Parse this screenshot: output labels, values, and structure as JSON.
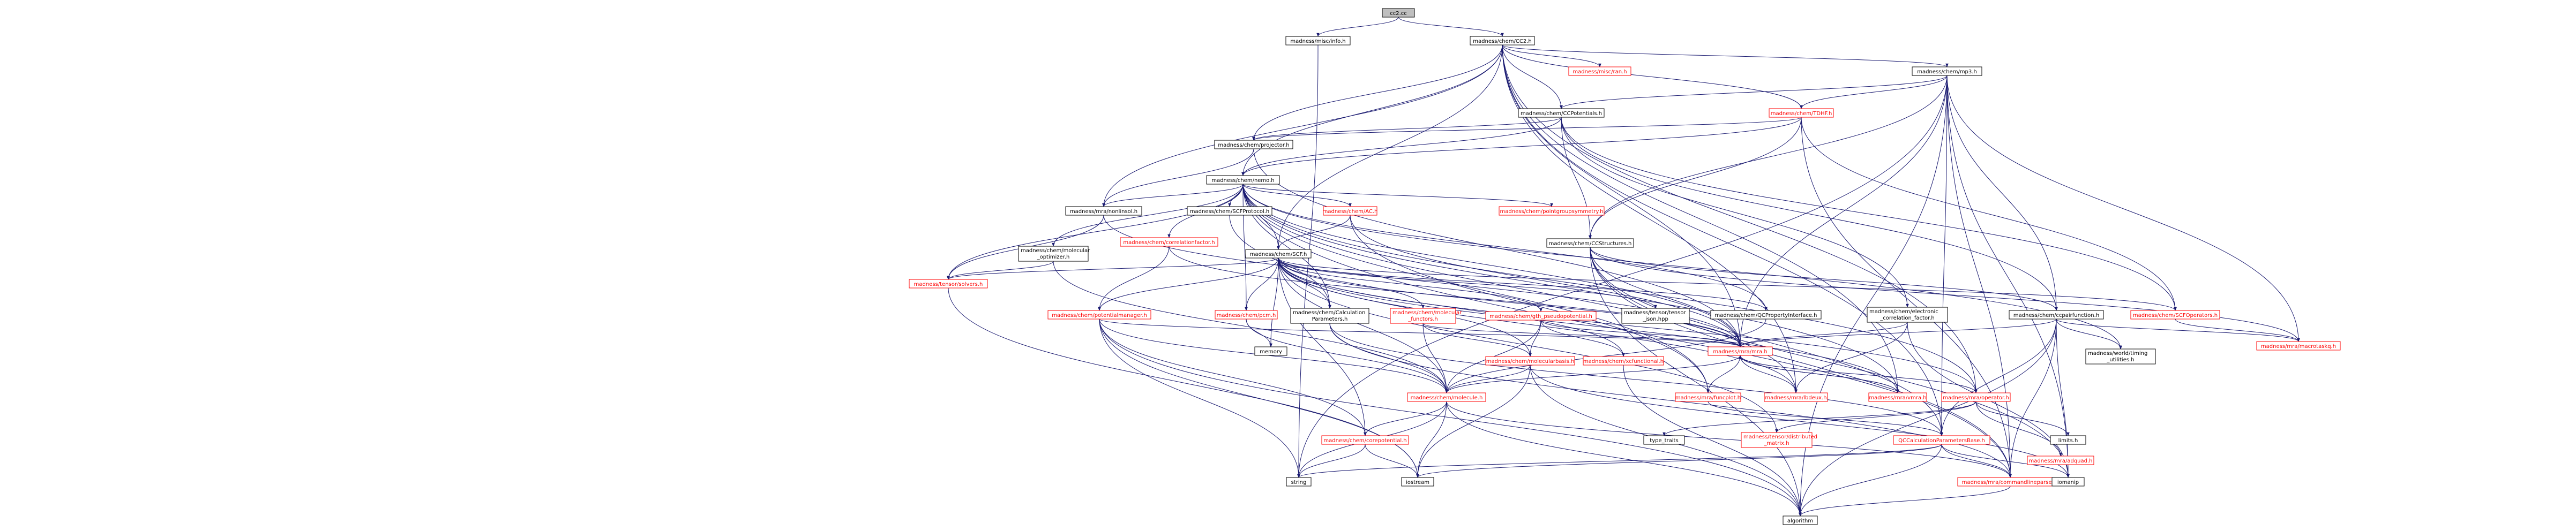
{
  "colors": {
    "link_text": "#ff0000",
    "plain_text": "#000000",
    "root_fill": "#bfbfbf",
    "node_border_link": "#ff0000",
    "node_border_plain": "#000000",
    "edge": "#191970"
  },
  "nodes": [
    {
      "id": "cc2_cc",
      "lines": [
        "cc2.cc"
      ],
      "kind": "root"
    },
    {
      "id": "info_h",
      "lines": [
        "madness/misc/info.h"
      ],
      "kind": "plain"
    },
    {
      "id": "CC2_h",
      "lines": [
        "madness/chem/CC2.h"
      ],
      "kind": "plain"
    },
    {
      "id": "ran_h",
      "lines": [
        "madness/misc/ran.h"
      ],
      "kind": "link"
    },
    {
      "id": "mp3_h",
      "lines": [
        "madness/chem/mp3.h"
      ],
      "kind": "plain"
    },
    {
      "id": "CCPotentials_h",
      "lines": [
        "madness/chem/CCPotentials.h"
      ],
      "kind": "plain"
    },
    {
      "id": "TDHF_h",
      "lines": [
        "madness/chem/TDHF.h"
      ],
      "kind": "link"
    },
    {
      "id": "projector_h",
      "lines": [
        "madness/chem/projector.h"
      ],
      "kind": "plain"
    },
    {
      "id": "nemo_h",
      "lines": [
        "madness/chem/nemo.h"
      ],
      "kind": "plain"
    },
    {
      "id": "nonlinsol_h",
      "lines": [
        "madness/mra/nonlinsol.h"
      ],
      "kind": "plain"
    },
    {
      "id": "SCFProtocol_h",
      "lines": [
        "madness/chem/SCFProtocol.h"
      ],
      "kind": "plain"
    },
    {
      "id": "AC_h",
      "lines": [
        "madness/chem/AC.h"
      ],
      "kind": "link"
    },
    {
      "id": "pointgroupsymmetry_h",
      "lines": [
        "madness/chem/pointgroupsymmetry.h"
      ],
      "kind": "link"
    },
    {
      "id": "molecular_optimizer_h",
      "lines": [
        "madness/chem/molecular",
        "_optimizer.h"
      ],
      "kind": "plain"
    },
    {
      "id": "correlationfactor_h",
      "lines": [
        "madness/chem/correlationfactor.h"
      ],
      "kind": "link"
    },
    {
      "id": "SCF_h",
      "lines": [
        "madness/chem/SCF.h"
      ],
      "kind": "plain"
    },
    {
      "id": "CCStructures_h",
      "lines": [
        "madness/chem/CCStructures.h"
      ],
      "kind": "plain"
    },
    {
      "id": "tensorsolvers_h",
      "lines": [
        "madness/tensor/solvers.h"
      ],
      "kind": "link"
    },
    {
      "id": "potentialmanager_h",
      "lines": [
        "madness/chem/potentialmanager.h"
      ],
      "kind": "link"
    },
    {
      "id": "pcm_h",
      "lines": [
        "madness/chem/pcm.h"
      ],
      "kind": "link"
    },
    {
      "id": "CalculationParameters_h",
      "lines": [
        "madness/chem/Calculation",
        "Parameters.h"
      ],
      "kind": "plain"
    },
    {
      "id": "molecular_functors_h",
      "lines": [
        "madness/chem/molecular",
        "_functors.h"
      ],
      "kind": "link"
    },
    {
      "id": "gth_pseudopotential_h",
      "lines": [
        "madness/chem/gth_pseudopotential.h"
      ],
      "kind": "link"
    },
    {
      "id": "tensorjson_hpp",
      "lines": [
        "madness/tensor/tensor",
        "_json.hpp"
      ],
      "kind": "plain"
    },
    {
      "id": "QCPropertyInterface_h",
      "lines": [
        "madness/chem/QCPropertyInterface.h"
      ],
      "kind": "plain"
    },
    {
      "id": "electronic_correlation_factor_h",
      "lines": [
        "madness/chem/electronic",
        "_correlation_factor.h"
      ],
      "kind": "plain"
    },
    {
      "id": "ccpairfunction_h",
      "lines": [
        "madness/chem/ccpairfunction.h"
      ],
      "kind": "plain"
    },
    {
      "id": "SCFOperators_h",
      "lines": [
        "madness/chem/SCFOperators.h"
      ],
      "kind": "link"
    },
    {
      "id": "macrotaskq_h",
      "lines": [
        "madness/mra/macrotaskq.h"
      ],
      "kind": "link"
    },
    {
      "id": "memory",
      "lines": [
        "memory"
      ],
      "kind": "plain"
    },
    {
      "id": "molecularbasis_h",
      "lines": [
        "madness/chem/molecularbasis.h"
      ],
      "kind": "link"
    },
    {
      "id": "xcfunctional_h",
      "lines": [
        "madness/chem/xcfunctional.h"
      ],
      "kind": "link"
    },
    {
      "id": "mra_h",
      "lines": [
        "madness/mra/mra.h"
      ],
      "kind": "link"
    },
    {
      "id": "world_utilities_h",
      "lines": [
        "madness/world/timing",
        "_utilities.h"
      ],
      "kind": "plain"
    },
    {
      "id": "molecule_h",
      "lines": [
        "madness/chem/molecule.h"
      ],
      "kind": "link"
    },
    {
      "id": "funcplot_h",
      "lines": [
        "madness/mra/funcplot.h"
      ],
      "kind": "link"
    },
    {
      "id": "lbdeux_h",
      "lines": [
        "madness/mra/lbdeux.h"
      ],
      "kind": "link"
    },
    {
      "id": "vmra_h",
      "lines": [
        "madness/mra/vmra.h"
      ],
      "kind": "link"
    },
    {
      "id": "operator_h",
      "lines": [
        "madness/mra/operator.h"
      ],
      "kind": "link"
    },
    {
      "id": "type_traits",
      "lines": [
        "type_traits"
      ],
      "kind": "plain"
    },
    {
      "id": "corepotential_h",
      "lines": [
        "madness/chem/corepotential.h"
      ],
      "kind": "link"
    },
    {
      "id": "distributed_matrix_h",
      "lines": [
        "madness/tensor/distributed",
        "_matrix.h"
      ],
      "kind": "link"
    },
    {
      "id": "QCCalculationParametersBase_h",
      "lines": [
        "QCCalculationParametersBase.h"
      ],
      "kind": "link"
    },
    {
      "id": "limits_h",
      "lines": [
        "limits.h"
      ],
      "kind": "plain"
    },
    {
      "id": "adquad_h",
      "lines": [
        "madness/mra/adquad.h"
      ],
      "kind": "link"
    },
    {
      "id": "string",
      "lines": [
        "string"
      ],
      "kind": "plain"
    },
    {
      "id": "iostream",
      "lines": [
        "iostream"
      ],
      "kind": "plain"
    },
    {
      "id": "commandlineparser_h",
      "lines": [
        "madness/mra/commandlineparser.h"
      ],
      "kind": "link"
    },
    {
      "id": "iomanip",
      "lines": [
        "iomanip"
      ],
      "kind": "plain"
    },
    {
      "id": "algorithm",
      "lines": [
        "algorithm"
      ],
      "kind": "plain"
    }
  ],
  "edges": [
    [
      "cc2_cc",
      "info_h"
    ],
    [
      "cc2_cc",
      "CC2_h"
    ],
    [
      "info_h",
      "string"
    ],
    [
      "CC2_h",
      "ran_h"
    ],
    [
      "CC2_h",
      "mp3_h"
    ],
    [
      "CC2_h",
      "CCPotentials_h"
    ],
    [
      "CC2_h",
      "TDHF_h"
    ],
    [
      "CC2_h",
      "projector_h"
    ],
    [
      "CC2_h",
      "nemo_h"
    ],
    [
      "CC2_h",
      "nonlinsol_h"
    ],
    [
      "CC2_h",
      "SCF_h"
    ],
    [
      "CC2_h",
      "mra_h"
    ],
    [
      "CC2_h",
      "operator_h"
    ],
    [
      "CC2_h",
      "vmra_h"
    ],
    [
      "CC2_h",
      "lbdeux_h"
    ],
    [
      "CC2_h",
      "QCCalculationParametersBase_h"
    ],
    [
      "mp3_h",
      "CCPotentials_h"
    ],
    [
      "mp3_h",
      "TDHF_h"
    ],
    [
      "mp3_h",
      "CCStructures_h"
    ],
    [
      "mp3_h",
      "ccpairfunction_h"
    ],
    [
      "mp3_h",
      "mra_h"
    ],
    [
      "mp3_h",
      "macrotaskq_h"
    ],
    [
      "mp3_h",
      "commandlineparser_h"
    ],
    [
      "mp3_h",
      "iomanip"
    ],
    [
      "mp3_h",
      "algorithm"
    ],
    [
      "mp3_h",
      "string"
    ],
    [
      "mp3_h",
      "QCCalculationParametersBase_h"
    ],
    [
      "CCPotentials_h",
      "projector_h"
    ],
    [
      "CCPotentials_h",
      "nemo_h"
    ],
    [
      "CCPotentials_h",
      "CCStructures_h"
    ],
    [
      "CCPotentials_h",
      "ccpairfunction_h"
    ],
    [
      "CCPotentials_h",
      "electronic_correlation_factor_h"
    ],
    [
      "CCPotentials_h",
      "SCFOperators_h"
    ],
    [
      "TDHF_h",
      "nemo_h"
    ],
    [
      "TDHF_h",
      "projector_h"
    ],
    [
      "TDHF_h",
      "CCStructures_h"
    ],
    [
      "TDHF_h",
      "SCFOperators_h"
    ],
    [
      "TDHF_h",
      "commandlineparser_h"
    ],
    [
      "projector_h",
      "mra_h"
    ],
    [
      "projector_h",
      "nonlinsol_h"
    ],
    [
      "nemo_h",
      "nonlinsol_h"
    ],
    [
      "nemo_h",
      "SCFProtocol_h"
    ],
    [
      "nemo_h",
      "AC_h"
    ],
    [
      "nemo_h",
      "pointgroupsymmetry_h"
    ],
    [
      "nemo_h",
      "molecular_optimizer_h"
    ],
    [
      "nemo_h",
      "correlationfactor_h"
    ],
    [
      "nemo_h",
      "SCF_h"
    ],
    [
      "nemo_h",
      "tensorsolvers_h"
    ],
    [
      "nemo_h",
      "pcm_h"
    ],
    [
      "nemo_h",
      "CalculationParameters_h"
    ],
    [
      "nemo_h",
      "QCPropertyInterface_h"
    ],
    [
      "nemo_h",
      "mra_h"
    ],
    [
      "nemo_h",
      "funcplot_h"
    ],
    [
      "nemo_h",
      "lbdeux_h"
    ],
    [
      "nemo_h",
      "vmra_h"
    ],
    [
      "nemo_h",
      "operator_h"
    ],
    [
      "nemo_h",
      "world_utilities_h"
    ],
    [
      "nemo_h",
      "commandlineparser_h"
    ],
    [
      "nonlinsol_h",
      "mra_h"
    ],
    [
      "nonlinsol_h",
      "tensorsolvers_h"
    ],
    [
      "SCFProtocol_h",
      "CalculationParameters_h"
    ],
    [
      "AC_h",
      "SCF_h"
    ],
    [
      "AC_h",
      "mra_h"
    ],
    [
      "AC_h",
      "funcplot_h"
    ],
    [
      "molecular_optimizer_h",
      "tensorsolvers_h"
    ],
    [
      "molecular_optimizer_h",
      "molecule_h"
    ],
    [
      "correlationfactor_h",
      "mra_h"
    ],
    [
      "correlationfactor_h",
      "potentialmanager_h"
    ],
    [
      "SCF_h",
      "tensorsolvers_h"
    ],
    [
      "SCF_h",
      "potentialmanager_h"
    ],
    [
      "SCF_h",
      "pcm_h"
    ],
    [
      "SCF_h",
      "CalculationParameters_h"
    ],
    [
      "SCF_h",
      "molecular_functors_h"
    ],
    [
      "SCF_h",
      "gth_pseudopotential_h"
    ],
    [
      "SCF_h",
      "tensorjson_hpp"
    ],
    [
      "SCF_h",
      "QCPropertyInterface_h"
    ],
    [
      "SCF_h",
      "SCFOperators_h"
    ],
    [
      "SCF_h",
      "memory"
    ],
    [
      "SCF_h",
      "molecularbasis_h"
    ],
    [
      "SCF_h",
      "xcfunctional_h"
    ],
    [
      "SCF_h",
      "mra_h"
    ],
    [
      "SCF_h",
      "molecule_h"
    ],
    [
      "SCF_h",
      "corepotential_h"
    ],
    [
      "SCF_h",
      "distributed_matrix_h"
    ],
    [
      "SCF_h",
      "lbdeux_h"
    ],
    [
      "SCF_h",
      "vmra_h"
    ],
    [
      "SCF_h",
      "operator_h"
    ],
    [
      "CCStructures_h",
      "ccpairfunction_h"
    ],
    [
      "CCStructures_h",
      "mra_h"
    ],
    [
      "CCStructures_h",
      "macrotaskq_h"
    ],
    [
      "CCStructures_h",
      "commandlineparser_h"
    ],
    [
      "CCStructures_h",
      "QCCalculationParametersBase_h"
    ],
    [
      "CCStructures_h",
      "iomanip"
    ],
    [
      "CCStructures_h",
      "algorithm"
    ],
    [
      "tensorsolvers_h",
      "iostream"
    ],
    [
      "potentialmanager_h",
      "molecule_h"
    ],
    [
      "potentialmanager_h",
      "corepotential_h"
    ],
    [
      "potentialmanager_h",
      "string"
    ],
    [
      "potentialmanager_h",
      "iostream"
    ],
    [
      "potentialmanager_h",
      "algorithm"
    ],
    [
      "potentialmanager_h",
      "mra_h"
    ],
    [
      "pcm_h",
      "molecule_h"
    ],
    [
      "pcm_h",
      "memory"
    ],
    [
      "CalculationParameters_h",
      "molecule_h"
    ],
    [
      "CalculationParameters_h",
      "QCCalculationParametersBase_h"
    ],
    [
      "CalculationParameters_h",
      "commandlineparser_h"
    ],
    [
      "molecular_functors_h",
      "molecularbasis_h"
    ],
    [
      "molecular_functors_h",
      "molecule_h"
    ],
    [
      "molecular_functors_h",
      "mra_h"
    ],
    [
      "gth_pseudopotential_h",
      "molecularbasis_h"
    ],
    [
      "gth_pseudopotential_h",
      "molecule_h"
    ],
    [
      "gth_pseudopotential_h",
      "mra_h"
    ],
    [
      "gth_pseudopotential_h",
      "xcfunctional_h"
    ],
    [
      "QCPropertyInterface_h",
      "molecule_h"
    ],
    [
      "electronic_correlation_factor_h",
      "mra_h"
    ],
    [
      "electronic_correlation_factor_h",
      "lbdeux_h"
    ],
    [
      "electronic_correlation_factor_h",
      "iomanip"
    ],
    [
      "ccpairfunction_h",
      "mra_h"
    ],
    [
      "ccpairfunction_h",
      "macrotaskq_h"
    ],
    [
      "ccpairfunction_h",
      "world_utilities_h"
    ],
    [
      "ccpairfunction_h",
      "commandlineparser_h"
    ],
    [
      "ccpairfunction_h",
      "QCCalculationParametersBase_h"
    ],
    [
      "ccpairfunction_h",
      "iomanip"
    ],
    [
      "ccpairfunction_h",
      "algorithm"
    ],
    [
      "SCFOperators_h",
      "macrotaskq_h"
    ],
    [
      "molecularbasis_h",
      "molecule_h"
    ],
    [
      "molecularbasis_h",
      "iostream"
    ],
    [
      "molecularbasis_h",
      "algorithm"
    ],
    [
      "molecularbasis_h",
      "iomanip"
    ],
    [
      "xcfunctional_h",
      "algorithm"
    ],
    [
      "mra_h",
      "funcplot_h"
    ],
    [
      "mra_h",
      "lbdeux_h"
    ],
    [
      "mra_h",
      "vmra_h"
    ],
    [
      "mra_h",
      "operator_h"
    ],
    [
      "mra_h",
      "molecule_h"
    ],
    [
      "molecule_h",
      "corepotential_h"
    ],
    [
      "molecule_h",
      "string"
    ],
    [
      "molecule_h",
      "iostream"
    ],
    [
      "molecule_h",
      "algorithm"
    ],
    [
      "molecule_h",
      "commandlineparser_h"
    ],
    [
      "funcplot_h",
      "QCCalculationParametersBase_h"
    ],
    [
      "vmra_h",
      "mra_h"
    ],
    [
      "operator_h",
      "type_traits"
    ],
    [
      "operator_h",
      "limits_h"
    ],
    [
      "operator_h",
      "adquad_h"
    ],
    [
      "operator_h",
      "distributed_matrix_h"
    ],
    [
      "corepotential_h",
      "string"
    ],
    [
      "corepotential_h",
      "iostream"
    ],
    [
      "QCCalculationParametersBase_h",
      "iomanip"
    ],
    [
      "QCCalculationParametersBase_h",
      "commandlineparser_h"
    ],
    [
      "QCCalculationParametersBase_h",
      "algorithm"
    ],
    [
      "QCCalculationParametersBase_h",
      "string"
    ],
    [
      "QCCalculationParametersBase_h",
      "iostream"
    ],
    [
      "commandlineparser_h",
      "algorithm"
    ]
  ]
}
